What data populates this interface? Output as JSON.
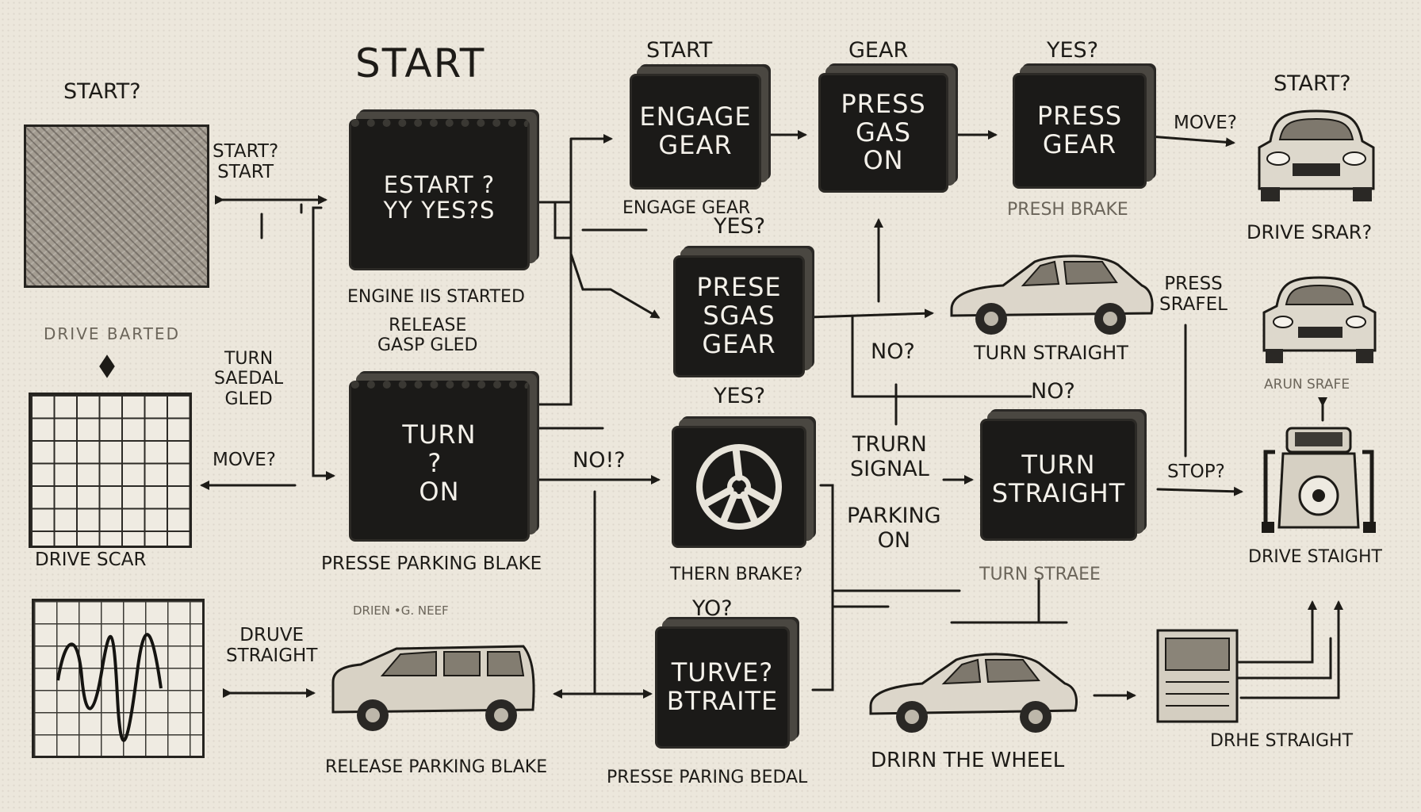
{
  "title": "START",
  "labels": {
    "start_q_top": "START?",
    "drive_barted": "DRIVE BARTED",
    "start_q_start": "START?\nSTART",
    "turn_sedal": "TURN\nSAEDAL\nGLED",
    "move_left": "MOVE?",
    "drive_scar": "DRIVE SCAR",
    "drive_straight_left": "DRUVE\nSTRAIGHT",
    "engine_started": "ENGINE IIS STARTED",
    "release_gas": "RELEASE\nGASP GLED",
    "presse_parking": "PRESSE PARKING BLAKE",
    "drien_scribble": "DRIEN •G. NEEF",
    "release_parking": "RELEASE PARKING BLAKE",
    "start_mid": "START",
    "engage_gear_caption": "ENGAGE GEAR",
    "gear_top": "GEAR",
    "yes_top": "YES?",
    "presh_brake": "PRESH BRAKE",
    "yes_mid": "YES?",
    "yes_low": "YES?",
    "no_left": "NO!?",
    "no_mid": "NO?",
    "no_right": "NO?",
    "tturn_signal": "TRURN\nSIGNAL",
    "parking_on": "PARKING\nON",
    "thern_brake": "THERN BRAKE?",
    "yo": "YO?",
    "presse_paring": "PRESSE PARING BEDAL",
    "move_right": "MOVE?",
    "start_q_right": "START?",
    "drive_srar": "DRIVE SRAR?",
    "turn_straight_caption": "TURN STRAIGHT",
    "press_srafel": "PRESS\nSRAFEL",
    "arun_srafe": "ARUN SRAFE",
    "stop": "STOP?",
    "drive_staight": "DRIVE STAIGHT",
    "turn_straee": "TURN STRAEE",
    "drirn_wheel": "DRIRN THE WHEEL",
    "drhe_straight": "DRHE STRAIGHT"
  },
  "boxes": {
    "start_yes": "ESTART ?\nYY YES?S",
    "turn_on": "TURN\n? \nON",
    "engage_gear": "ENGAGE\nGEAR",
    "press_gas_on": "PRESS\nGAS\nON",
    "press_gear": "PRESS\nGEAR",
    "prese_sgas_gear": "PRESE\nSGAS\nGEAR",
    "turn_straight": "TURN\nSTRAIGHT",
    "turve_btraite": "TURVE?\nBTRAITE"
  },
  "icons": [
    "car-icon",
    "steering-wheel-icon",
    "vending-machine-icon",
    "robot-icon"
  ]
}
